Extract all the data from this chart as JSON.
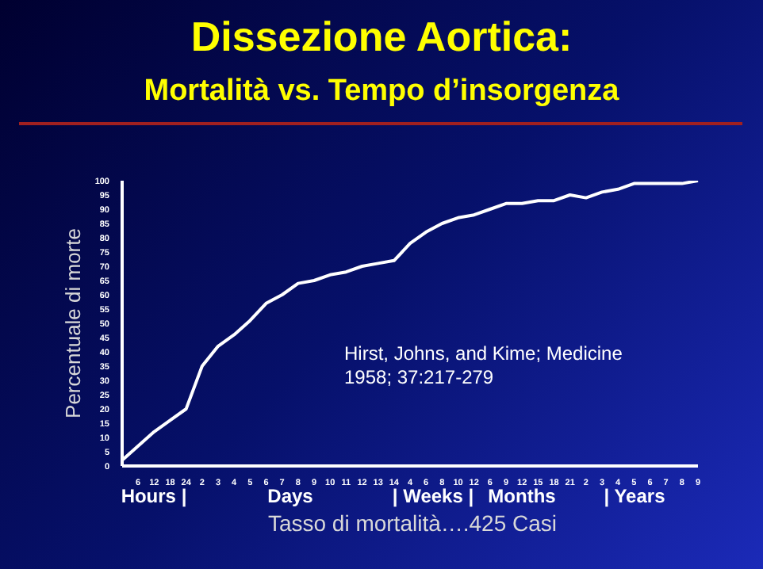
{
  "chart_data": {
    "type": "line",
    "title": "Dissezione Aortica:",
    "subtitle": "Mortalità vs. Tempo d’insorgenza",
    "ylabel": "Percentuale di morte",
    "xlabel": "Tasso di mortalità….425 Casi",
    "categories": [
      null,
      "6",
      "12",
      "18",
      "24",
      "2",
      "3",
      "4",
      "5",
      "6",
      "7",
      "8",
      "9",
      "10",
      "11",
      "12",
      "13",
      "14",
      "4",
      "6",
      "8",
      "10",
      "12",
      "6",
      "9",
      "12",
      "15",
      "18",
      "21",
      "2",
      "3",
      "4",
      "5",
      "6",
      "7",
      "8",
      "9"
    ],
    "series": [
      {
        "color": "#ffffff",
        "values": [
          2,
          7,
          12,
          16,
          20,
          35,
          42,
          46,
          51,
          57,
          60,
          64,
          65,
          67,
          68,
          70,
          71,
          72,
          78,
          82,
          85,
          87,
          88,
          90,
          92,
          92,
          93,
          93,
          95,
          94,
          96,
          97,
          99,
          99,
          99,
          99,
          100
        ]
      }
    ],
    "ylim": [
      0,
      100
    ],
    "yticks": [
      0,
      5,
      10,
      15,
      20,
      25,
      30,
      35,
      40,
      45,
      50,
      55,
      60,
      65,
      70,
      75,
      80,
      85,
      90,
      95,
      100
    ],
    "grid": false,
    "legend": false,
    "marker": "none",
    "line_style": "solid",
    "annotations": [
      "Hirst, Johns, and Kime; Medicine 1958; 37:217-279",
      "Hours |",
      "Days",
      "| Weeks |",
      "Months",
      "| Years"
    ]
  }
}
